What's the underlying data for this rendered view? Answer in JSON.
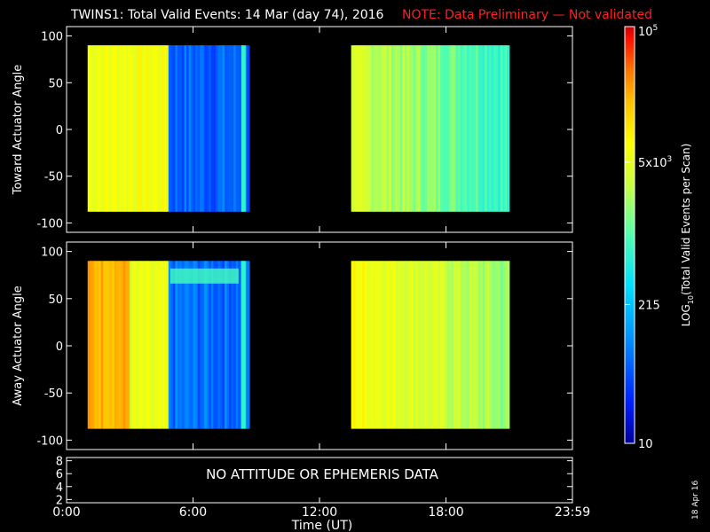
{
  "header": {
    "title": "TWINS1: Total Valid Events: 14 Mar (day  74), 2016",
    "note": "NOTE: Data Preliminary — Not validated",
    "note_color": "#ff2020"
  },
  "footer": {
    "xlabel": "Time (UT)",
    "date_stamp": "18 Apr 16"
  },
  "colorbar": {
    "label": "LOG10(Total Valid Events per Scan)",
    "label_main": "LOG",
    "label_sub": "10",
    "label_rest": "(Total Valid  Events per Scan)",
    "ticks": [
      {
        "label": "10",
        "value": 10
      },
      {
        "label": "215",
        "value": 215
      },
      {
        "label": "5x10^3",
        "base": "5x10",
        "exp": "3",
        "value": 5000
      },
      {
        "label": "10^5",
        "base": "10",
        "exp": "5",
        "value": 100000
      }
    ],
    "colormap": [
      "#00009c",
      "#0020ff",
      "#0090ff",
      "#00e0ff",
      "#50ffb0",
      "#c8ff40",
      "#ffff00",
      "#ffc000",
      "#ff7000",
      "#ff1000",
      "#d00000"
    ]
  },
  "chart_data": [
    {
      "type": "heatmap",
      "panel": "toward",
      "ylabel": "Toward Actuator Angle",
      "xlim": [
        "0:00",
        "23:59"
      ],
      "ylim": [
        -110,
        110
      ],
      "y_ticks": [
        100,
        50,
        0,
        -50,
        -100
      ],
      "y_range_data": [
        -88,
        90
      ],
      "segments": [
        {
          "start": "1:00",
          "end": "4:50",
          "level": 0.58,
          "note": "yellow-green"
        },
        {
          "start": "4:50",
          "end": "8:40",
          "level": 0.16,
          "note": "blue"
        },
        {
          "start": "13:30",
          "end": "21:00",
          "level": 0.52,
          "note": "yellow fading to cyan-green"
        }
      ]
    },
    {
      "type": "heatmap",
      "panel": "away",
      "ylabel": "Away Actuator Angle",
      "xlim": [
        "0:00",
        "23:59"
      ],
      "ylim": [
        -110,
        110
      ],
      "y_ticks": [
        100,
        50,
        0,
        -50,
        -100
      ],
      "y_range_data": [
        -88,
        90
      ],
      "segments": [
        {
          "start": "1:00",
          "end": "3:00",
          "level": 0.72,
          "note": "orange"
        },
        {
          "start": "3:00",
          "end": "4:50",
          "level": 0.55,
          "note": "yellow-green"
        },
        {
          "start": "4:50",
          "end": "8:40",
          "level": 0.17,
          "note": "blue, cyan band near +75"
        },
        {
          "start": "13:30",
          "end": "21:00",
          "level": 0.6,
          "note": "orange fading to green"
        }
      ]
    },
    {
      "type": "line",
      "panel": "attitude",
      "message": "NO ATTITUDE OR EPHEMERIS DATA",
      "y_ticks": [
        8,
        6,
        4,
        2
      ],
      "ylim": [
        1.5,
        8.5
      ]
    }
  ],
  "x_ticks": [
    "0:00",
    "6:00",
    "12:00",
    "18:00",
    "23:59"
  ]
}
